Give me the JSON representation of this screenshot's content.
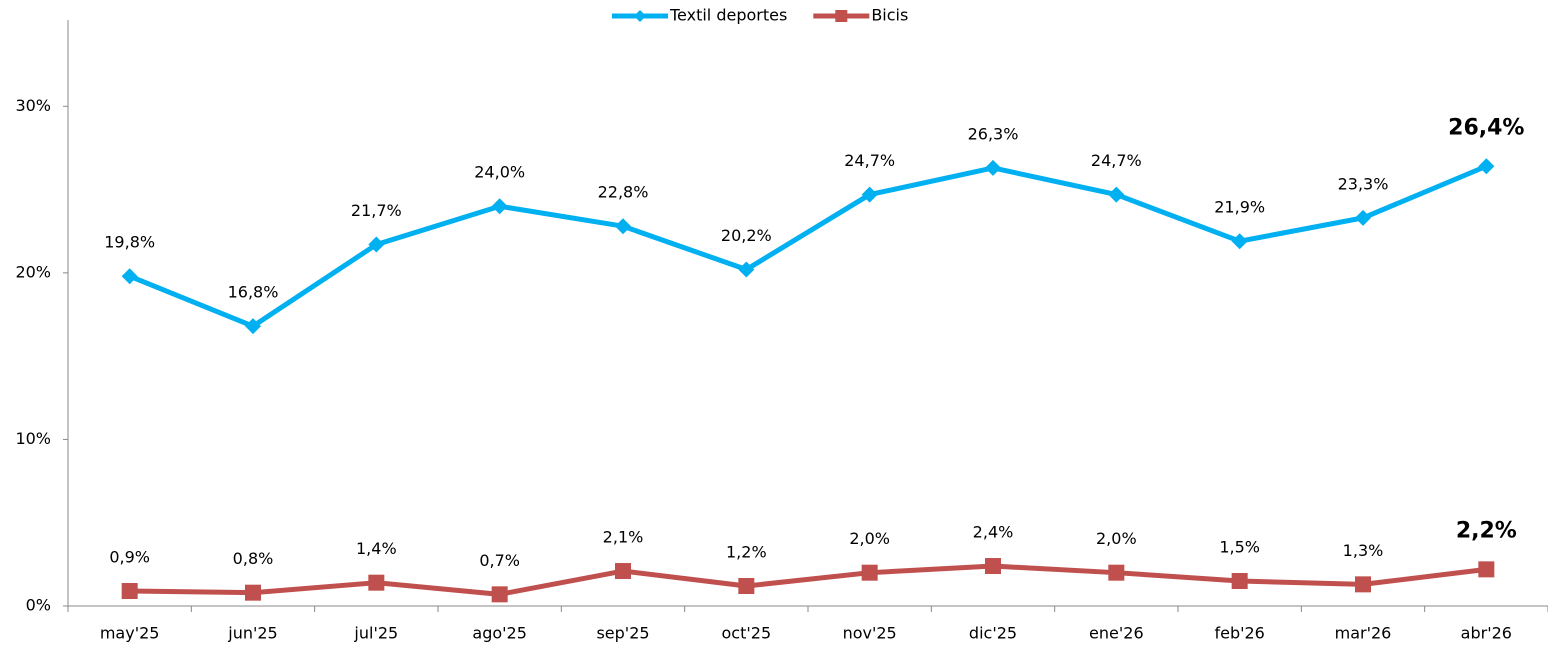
{
  "chart_data": {
    "type": "line",
    "categories": [
      "may'25",
      "jun'25",
      "jul'25",
      "ago'25",
      "sep'25",
      "oct'25",
      "nov'25",
      "dic'25",
      "ene'26",
      "feb'26",
      "mar'26",
      "abr'26"
    ],
    "series": [
      {
        "name": "Textil deportes",
        "color": "#00b0f0",
        "label_color": "#0070c0",
        "marker": "diamond",
        "values": [
          19.8,
          16.8,
          21.7,
          24.0,
          22.8,
          20.2,
          24.7,
          26.3,
          24.7,
          21.9,
          23.3,
          26.4
        ],
        "value_labels": [
          "19,8%",
          "16,8%",
          "21,7%",
          "24,0%",
          "22,8%",
          "20,2%",
          "24,7%",
          "26,3%",
          "24,7%",
          "21,9%",
          "23,3%",
          "26,4%"
        ]
      },
      {
        "name": "Bicis",
        "color": "#c0504d",
        "label_color": "#c00000",
        "marker": "square",
        "values": [
          0.9,
          0.8,
          1.4,
          0.7,
          2.1,
          1.2,
          2.0,
          2.4,
          2.0,
          1.5,
          1.3,
          2.2
        ],
        "value_labels": [
          "0,9%",
          "0,8%",
          "1,4%",
          "0,7%",
          "2,1%",
          "1,2%",
          "2,0%",
          "2,4%",
          "2,0%",
          "1,5%",
          "1,3%",
          "2,2%"
        ]
      }
    ],
    "ylim": [
      0,
      35
    ],
    "yticks": [
      {
        "value": 0,
        "label": "0%"
      },
      {
        "value": 10,
        "label": "10%"
      },
      {
        "value": 20,
        "label": "20%"
      },
      {
        "value": 30,
        "label": "30%"
      }
    ],
    "grid": false,
    "legend": "top"
  }
}
